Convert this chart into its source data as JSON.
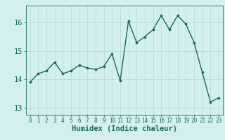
{
  "x": [
    0,
    1,
    2,
    3,
    4,
    5,
    6,
    7,
    8,
    9,
    10,
    11,
    12,
    13,
    14,
    15,
    16,
    17,
    18,
    19,
    20,
    21,
    22,
    23
  ],
  "y": [
    13.9,
    14.2,
    14.3,
    14.6,
    14.2,
    14.3,
    14.5,
    14.4,
    14.35,
    14.45,
    14.9,
    13.95,
    16.05,
    15.3,
    15.5,
    15.75,
    16.25,
    15.75,
    16.25,
    15.95,
    15.3,
    14.25,
    13.2,
    13.35
  ],
  "xlabel": "Humidex (Indice chaleur)",
  "ylim": [
    12.75,
    16.6
  ],
  "xlim": [
    -0.5,
    23.5
  ],
  "yticks": [
    13,
    14,
    15,
    16
  ],
  "xticks": [
    0,
    1,
    2,
    3,
    4,
    5,
    6,
    7,
    8,
    9,
    10,
    11,
    12,
    13,
    14,
    15,
    16,
    17,
    18,
    19,
    20,
    21,
    22,
    23
  ],
  "line_color": "#1a6b5a",
  "marker_color": "#1a6b5a",
  "bg_color": "#d4efef",
  "grid_color": "#b8d8d8",
  "xlabel_color": "#1a6b5a",
  "tick_color": "#1a6b5a",
  "axis_color": "#1a6b5a",
  "xlabel_fontsize": 7.5,
  "ytick_fontsize": 7.5,
  "xtick_fontsize": 5.5
}
